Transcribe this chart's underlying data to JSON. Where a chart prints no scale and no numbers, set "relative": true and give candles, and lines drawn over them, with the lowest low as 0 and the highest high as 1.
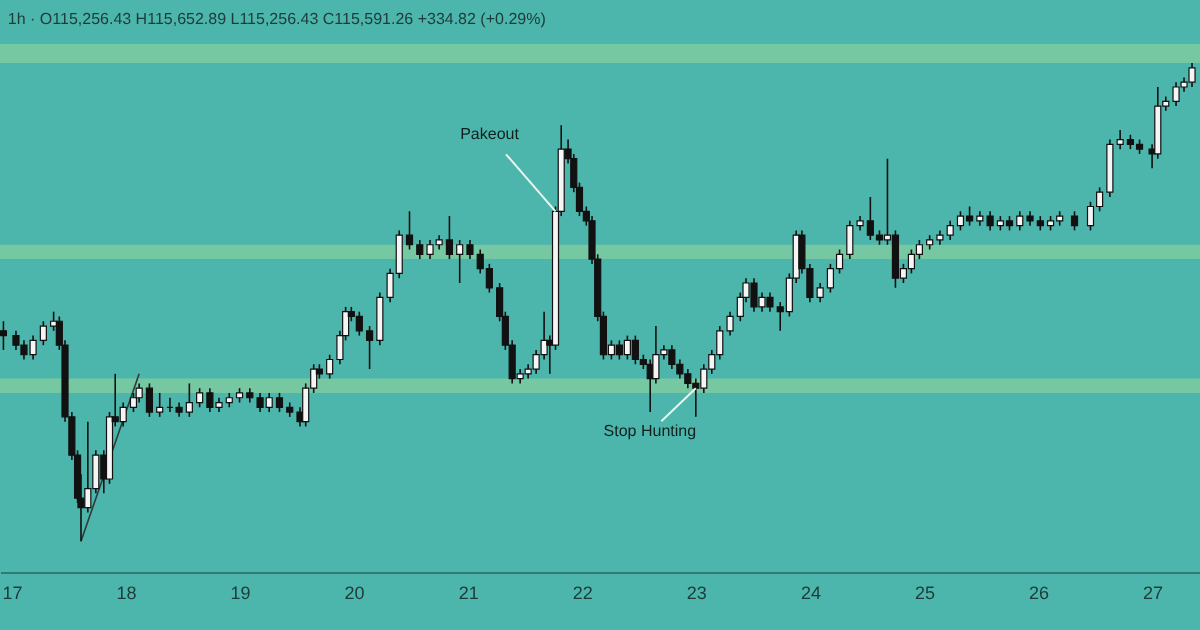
{
  "chart_data": {
    "type": "candlestick",
    "title": "1h · O115,256.43 H115,652.89 L115,256.43 C115,591.26 +334.82 (+0.29%)",
    "relative": true,
    "x": [
      16.93,
      17.04,
      17.11,
      17.19,
      17.28,
      17.37,
      17.42,
      17.47,
      17.53,
      17.58,
      17.61,
      17.67,
      17.74,
      17.81,
      17.86,
      17.91,
      17.98,
      18.07,
      18.12,
      18.21,
      18.3,
      18.39,
      18.47,
      18.56,
      18.65,
      18.74,
      18.82,
      18.91,
      19.0,
      19.09,
      19.18,
      19.26,
      19.35,
      19.44,
      19.53,
      19.58,
      19.65,
      19.7,
      19.79,
      19.88,
      19.93,
      19.98,
      20.05,
      20.14,
      20.23,
      20.32,
      20.4,
      20.49,
      20.58,
      20.67,
      20.75,
      20.84,
      20.93,
      21.02,
      21.11,
      21.19,
      21.28,
      21.33,
      21.39,
      21.46,
      21.53,
      21.6,
      21.67,
      21.72,
      21.77,
      21.82,
      21.88,
      21.93,
      21.98,
      22.04,
      22.09,
      22.14,
      22.19,
      22.26,
      22.33,
      22.4,
      22.47,
      22.54,
      22.6,
      22.65,
      22.72,
      22.79,
      22.86,
      22.93,
      23.0,
      23.07,
      23.14,
      23.21,
      23.3,
      23.39,
      23.44,
      23.51,
      23.58,
      23.65,
      23.74,
      23.82,
      23.88,
      23.93,
      24.0,
      24.09,
      24.18,
      24.26,
      24.35,
      24.44,
      24.53,
      24.61,
      24.68,
      24.75,
      24.82,
      24.89,
      24.96,
      25.05,
      25.14,
      25.23,
      25.32,
      25.4,
      25.49,
      25.58,
      25.67,
      25.75,
      25.84,
      25.93,
      26.02,
      26.11,
      26.19,
      26.32,
      26.46,
      26.54,
      26.63,
      26.72,
      26.81,
      26.89,
      27.0,
      27.05,
      27.12,
      27.21,
      27.28,
      27.35
    ],
    "ohlc": [
      [
        0.44,
        0.46,
        0.4,
        0.43
      ],
      [
        0.43,
        0.44,
        0.4,
        0.41
      ],
      [
        0.41,
        0.42,
        0.38,
        0.39
      ],
      [
        0.39,
        0.43,
        0.38,
        0.42
      ],
      [
        0.42,
        0.46,
        0.41,
        0.45
      ],
      [
        0.45,
        0.48,
        0.44,
        0.46
      ],
      [
        0.46,
        0.47,
        0.4,
        0.41
      ],
      [
        0.41,
        0.42,
        0.25,
        0.26
      ],
      [
        0.26,
        0.27,
        0.17,
        0.18
      ],
      [
        0.18,
        0.19,
        0.08,
        0.09
      ],
      [
        0.09,
        0.14,
        0,
        0.07
      ],
      [
        0.07,
        0.25,
        0.06,
        0.11
      ],
      [
        0.11,
        0.19,
        0.1,
        0.18
      ],
      [
        0.18,
        0.19,
        0.1,
        0.13
      ],
      [
        0.13,
        0.27,
        0.12,
        0.26
      ],
      [
        0.26,
        0.35,
        0.24,
        0.25
      ],
      [
        0.25,
        0.29,
        0.24,
        0.28
      ],
      [
        0.28,
        0.31,
        0.27,
        0.3
      ],
      [
        0.3,
        0.33,
        0.29,
        0.32
      ],
      [
        0.32,
        0.33,
        0.26,
        0.27
      ],
      [
        0.27,
        0.31,
        0.26,
        0.28
      ],
      [
        0.28,
        0.3,
        0.27,
        0.28
      ],
      [
        0.28,
        0.29,
        0.26,
        0.27
      ],
      [
        0.27,
        0.33,
        0.26,
        0.29
      ],
      [
        0.29,
        0.32,
        0.28,
        0.31
      ],
      [
        0.31,
        0.32,
        0.27,
        0.28
      ],
      [
        0.28,
        0.3,
        0.27,
        0.29
      ],
      [
        0.29,
        0.31,
        0.28,
        0.3
      ],
      [
        0.3,
        0.32,
        0.29,
        0.31
      ],
      [
        0.31,
        0.32,
        0.29,
        0.3
      ],
      [
        0.3,
        0.31,
        0.27,
        0.28
      ],
      [
        0.28,
        0.31,
        0.27,
        0.3
      ],
      [
        0.3,
        0.31,
        0.27,
        0.28
      ],
      [
        0.28,
        0.29,
        0.26,
        0.27
      ],
      [
        0.27,
        0.28,
        0.24,
        0.25
      ],
      [
        0.25,
        0.33,
        0.24,
        0.32
      ],
      [
        0.32,
        0.37,
        0.31,
        0.36
      ],
      [
        0.36,
        0.37,
        0.34,
        0.35
      ],
      [
        0.35,
        0.39,
        0.34,
        0.38
      ],
      [
        0.38,
        0.44,
        0.37,
        0.43
      ],
      [
        0.43,
        0.49,
        0.42,
        0.48
      ],
      [
        0.48,
        0.49,
        0.46,
        0.47
      ],
      [
        0.47,
        0.48,
        0.43,
        0.44
      ],
      [
        0.44,
        0.45,
        0.36,
        0.42
      ],
      [
        0.42,
        0.52,
        0.41,
        0.51
      ],
      [
        0.51,
        0.57,
        0.5,
        0.56
      ],
      [
        0.56,
        0.65,
        0.55,
        0.64
      ],
      [
        0.64,
        0.69,
        0.61,
        0.62
      ],
      [
        0.62,
        0.63,
        0.59,
        0.6
      ],
      [
        0.6,
        0.63,
        0.59,
        0.62
      ],
      [
        0.62,
        0.64,
        0.61,
        0.63
      ],
      [
        0.63,
        0.68,
        0.59,
        0.6
      ],
      [
        0.6,
        0.63,
        0.54,
        0.62
      ],
      [
        0.62,
        0.63,
        0.59,
        0.6
      ],
      [
        0.6,
        0.61,
        0.56,
        0.57
      ],
      [
        0.57,
        0.58,
        0.52,
        0.53
      ],
      [
        0.53,
        0.54,
        0.46,
        0.47
      ],
      [
        0.47,
        0.48,
        0.4,
        0.41
      ],
      [
        0.41,
        0.42,
        0.33,
        0.34
      ],
      [
        0.34,
        0.36,
        0.33,
        0.35
      ],
      [
        0.35,
        0.37,
        0.34,
        0.36
      ],
      [
        0.36,
        0.4,
        0.35,
        0.39
      ],
      [
        0.39,
        0.48,
        0.38,
        0.42
      ],
      [
        0.42,
        0.43,
        0.35,
        0.41
      ],
      [
        0.41,
        0.7,
        0.4,
        0.69
      ],
      [
        0.69,
        0.87,
        0.68,
        0.82
      ],
      [
        0.82,
        0.84,
        0.79,
        0.8
      ],
      [
        0.8,
        0.81,
        0.73,
        0.74
      ],
      [
        0.74,
        0.75,
        0.68,
        0.69
      ],
      [
        0.69,
        0.7,
        0.66,
        0.67
      ],
      [
        0.67,
        0.68,
        0.58,
        0.59
      ],
      [
        0.59,
        0.6,
        0.46,
        0.47
      ],
      [
        0.47,
        0.48,
        0.38,
        0.39
      ],
      [
        0.39,
        0.42,
        0.38,
        0.41
      ],
      [
        0.41,
        0.42,
        0.38,
        0.39
      ],
      [
        0.39,
        0.43,
        0.38,
        0.42
      ],
      [
        0.42,
        0.43,
        0.37,
        0.38
      ],
      [
        0.38,
        0.39,
        0.36,
        0.37
      ],
      [
        0.37,
        0.38,
        0.27,
        0.34
      ],
      [
        0.34,
        0.45,
        0.33,
        0.39
      ],
      [
        0.39,
        0.41,
        0.38,
        0.4
      ],
      [
        0.4,
        0.41,
        0.36,
        0.37
      ],
      [
        0.37,
        0.38,
        0.34,
        0.35
      ],
      [
        0.35,
        0.36,
        0.32,
        0.33
      ],
      [
        0.33,
        0.34,
        0.26,
        0.32
      ],
      [
        0.32,
        0.37,
        0.31,
        0.36
      ],
      [
        0.36,
        0.4,
        0.35,
        0.39
      ],
      [
        0.39,
        0.45,
        0.38,
        0.44
      ],
      [
        0.44,
        0.48,
        0.43,
        0.47
      ],
      [
        0.47,
        0.52,
        0.46,
        0.51
      ],
      [
        0.51,
        0.55,
        0.5,
        0.54
      ],
      [
        0.54,
        0.55,
        0.48,
        0.49
      ],
      [
        0.49,
        0.52,
        0.48,
        0.51
      ],
      [
        0.51,
        0.52,
        0.48,
        0.49
      ],
      [
        0.49,
        0.5,
        0.44,
        0.48
      ],
      [
        0.48,
        0.56,
        0.47,
        0.55
      ],
      [
        0.55,
        0.65,
        0.54,
        0.64
      ],
      [
        0.64,
        0.65,
        0.56,
        0.57
      ],
      [
        0.57,
        0.58,
        0.5,
        0.51
      ],
      [
        0.51,
        0.54,
        0.5,
        0.53
      ],
      [
        0.53,
        0.58,
        0.52,
        0.57
      ],
      [
        0.57,
        0.61,
        0.56,
        0.6
      ],
      [
        0.6,
        0.67,
        0.59,
        0.66
      ],
      [
        0.66,
        0.68,
        0.65,
        0.67
      ],
      [
        0.67,
        0.72,
        0.63,
        0.64
      ],
      [
        0.64,
        0.65,
        0.62,
        0.63
      ],
      [
        0.63,
        0.8,
        0.62,
        0.64
      ],
      [
        0.64,
        0.65,
        0.53,
        0.55
      ],
      [
        0.55,
        0.58,
        0.54,
        0.57
      ],
      [
        0.57,
        0.61,
        0.56,
        0.6
      ],
      [
        0.6,
        0.63,
        0.59,
        0.62
      ],
      [
        0.62,
        0.64,
        0.61,
        0.63
      ],
      [
        0.63,
        0.65,
        0.62,
        0.64
      ],
      [
        0.64,
        0.67,
        0.63,
        0.66
      ],
      [
        0.66,
        0.69,
        0.65,
        0.68
      ],
      [
        0.68,
        0.7,
        0.66,
        0.67
      ],
      [
        0.67,
        0.69,
        0.66,
        0.68
      ],
      [
        0.68,
        0.69,
        0.65,
        0.66
      ],
      [
        0.66,
        0.68,
        0.65,
        0.67
      ],
      [
        0.67,
        0.68,
        0.65,
        0.66
      ],
      [
        0.66,
        0.69,
        0.65,
        0.68
      ],
      [
        0.68,
        0.69,
        0.66,
        0.67
      ],
      [
        0.67,
        0.68,
        0.65,
        0.66
      ],
      [
        0.66,
        0.68,
        0.65,
        0.67
      ],
      [
        0.67,
        0.69,
        0.66,
        0.68
      ],
      [
        0.68,
        0.69,
        0.65,
        0.66
      ],
      [
        0.66,
        0.71,
        0.65,
        0.7
      ],
      [
        0.7,
        0.74,
        0.69,
        0.73
      ],
      [
        0.73,
        0.84,
        0.72,
        0.83
      ],
      [
        0.83,
        0.86,
        0.82,
        0.84
      ],
      [
        0.84,
        0.85,
        0.82,
        0.83
      ],
      [
        0.83,
        0.84,
        0.81,
        0.82
      ],
      [
        0.82,
        0.83,
        0.78,
        0.81
      ],
      [
        0.81,
        0.95,
        0.8,
        0.91
      ],
      [
        0.91,
        0.93,
        0.9,
        0.92
      ],
      [
        0.92,
        0.96,
        0.91,
        0.95
      ],
      [
        0.95,
        0.97,
        0.94,
        0.96
      ],
      [
        0.96,
        1,
        0.95,
        0.99
      ]
    ],
    "series": [
      {
        "type": "line",
        "x": [
          17.61,
          18.12
        ],
        "values": [
          0,
          0.35
        ],
        "color": "#2f3b3b"
      }
    ],
    "bands": [
      {
        "axis": "y",
        "from": 1.0,
        "to": 1.04,
        "color": "#7ecba1"
      },
      {
        "axis": "y",
        "from": 0.59,
        "to": 0.62,
        "color": "#7ecba1"
      },
      {
        "axis": "y",
        "from": 0.31,
        "to": 0.34,
        "color": "#7ecba1"
      }
    ],
    "annotations": [
      {
        "text": "Pakeout",
        "x": 21.77,
        "y": 0.69
      },
      {
        "text": "Stop Hunting",
        "x": 23.0,
        "y": 0.32
      }
    ],
    "xlim": [
      16.9,
      27.42
    ],
    "xticks": [
      17,
      18,
      19,
      20,
      21,
      22,
      23,
      24,
      25,
      26,
      27
    ],
    "grid": false
  }
}
